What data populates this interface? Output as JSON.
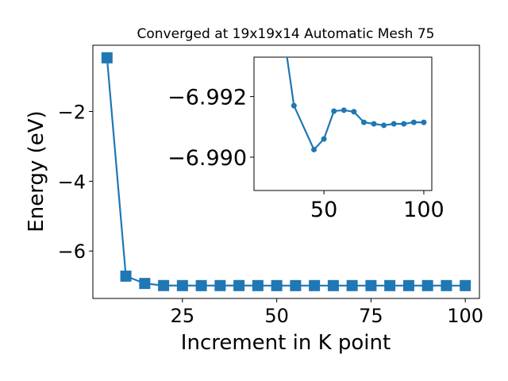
{
  "chart_data": [
    {
      "type": "line",
      "title": "Converged at 19x19x14 Automatic Mesh 75",
      "xlabel": "Increment in K point",
      "ylabel": "Energy (eV)",
      "xlim": [
        1.25,
        103.75
      ],
      "ylim": [
        -7.36,
        -0.1
      ],
      "xticks": [
        25,
        50,
        75,
        100
      ],
      "yticks": [
        -2,
        -4,
        -6
      ],
      "xtick_labels": [
        "25",
        "50",
        "75",
        "100"
      ],
      "ytick_labels": [
        "−2",
        "−4",
        "−6"
      ],
      "marker": "square",
      "color": "#1f77b4",
      "series": [
        {
          "x": [
            5,
            10,
            15,
            20,
            25,
            30,
            35,
            40,
            45,
            50,
            55,
            60,
            65,
            70,
            75,
            80,
            85,
            90,
            95,
            100
          ],
          "y": [
            -0.46,
            -6.72,
            -6.93,
            -6.99,
            -6.991,
            -6.992,
            -6.991,
            -6.9902,
            -6.9915,
            -6.9918,
            -6.9918,
            -6.9915,
            -6.9915,
            -6.9914,
            -6.9914,
            -6.9914,
            -6.9914,
            -6.9914,
            -6.9914,
            -6.9914
          ]
        }
      ]
    },
    {
      "type": "line",
      "inset": true,
      "xlim": [
        15,
        104
      ],
      "ylim": [
        -6.9889,
        -6.9933
      ],
      "xticks": [
        50,
        100
      ],
      "yticks": [
        -6.992,
        -6.99
      ],
      "xtick_labels": [
        "50",
        "100"
      ],
      "ytick_labels": [
        "−6.992",
        "−6.990"
      ],
      "marker": "circle",
      "color": "#1f77b4",
      "series": [
        {
          "x": [
            30,
            35,
            45,
            50,
            55,
            60,
            65,
            70,
            75,
            80,
            85,
            90,
            95,
            100
          ],
          "y": [
            -6.994,
            -6.9917,
            -6.99025,
            -6.9906,
            -6.99152,
            -6.99155,
            -6.9915,
            -6.99115,
            -6.9911,
            -6.99105,
            -6.9911,
            -6.9911,
            -6.99115,
            -6.99115
          ]
        }
      ]
    }
  ]
}
